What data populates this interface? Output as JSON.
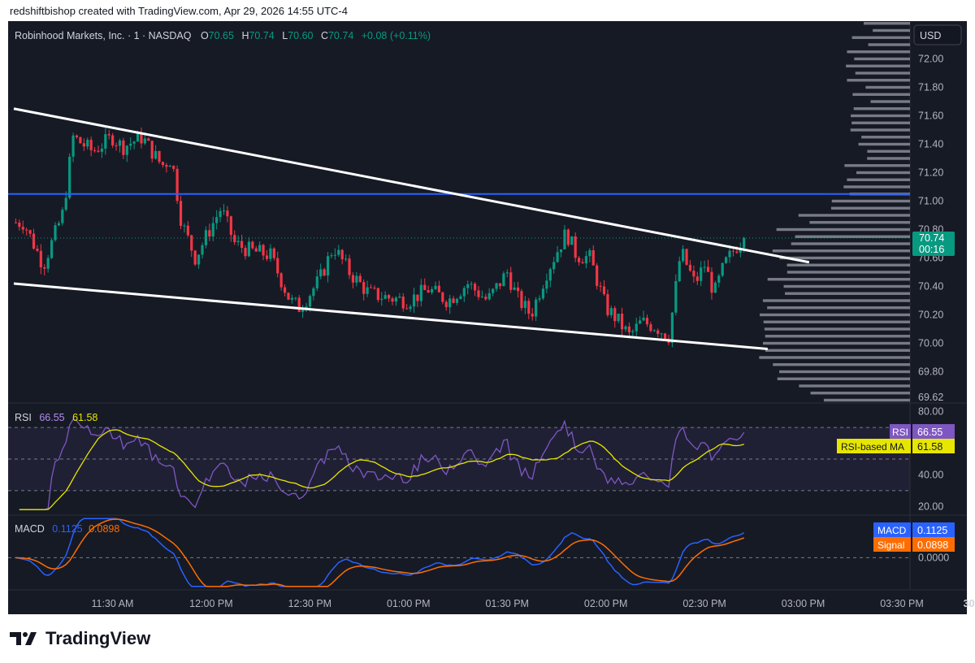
{
  "header": {
    "text": "redshiftbishop created with TradingView.com, Apr 29, 2026 14:55 UTC-4"
  },
  "brand": {
    "name": "TradingView"
  },
  "legend": {
    "symbol": "Robinhood Markets, Inc. · 1 · NASDAQ",
    "o_label": "O",
    "o_value": "70.65",
    "h_label": "H",
    "h_value": "70.74",
    "l_label": "L",
    "l_value": "70.60",
    "c_label": "C",
    "c_value": "70.74",
    "change": "+0.08 (+0.11%)"
  },
  "currency": "USD",
  "price_tag": {
    "price": "70.74",
    "countdown": "00:16"
  },
  "rsi": {
    "title": "RSI",
    "value": "66.55",
    "ma_value": "61.58",
    "tag_rsi": "RSI",
    "tag_ma": "RSI-based MA"
  },
  "macd": {
    "title": "MACD",
    "value": "0.1125",
    "signal_value": "0.0898",
    "tag_macd": "MACD",
    "tag_signal": "Signal"
  },
  "colors": {
    "background": "#161a25",
    "up": "#089981",
    "down": "#f23645",
    "resistance_line": "#2962ff",
    "rsi": "#7e57c2",
    "rsi_ma": "#e6e600",
    "macd": "#2962ff",
    "signal": "#ff6d00",
    "volume_profile": "#787b86"
  },
  "chart_data": [
    {
      "type": "candlestick",
      "title": "Robinhood Markets, Inc. · 1 · NASDAQ",
      "x_axis": {
        "type": "time",
        "tick_labels": [
          "11:30 AM",
          "12:00 PM",
          "12:30 PM",
          "01:00 PM",
          "01:30 PM",
          "02:00 PM",
          "02:30 PM",
          "03:00 PM",
          "03:30 PM",
          "30"
        ]
      },
      "y_axis": {
        "ticks": [
          "72.00",
          "71.80",
          "71.60",
          "71.40",
          "71.20",
          "71.00",
          "70.80",
          "70.60",
          "70.40",
          "70.20",
          "70.00",
          "69.80",
          "69.62"
        ],
        "range": [
          69.58,
          72.26
        ]
      },
      "last_price": 70.74,
      "anchors": [
        [
          11.05,
          70.85
        ],
        [
          11.15,
          70.55
        ],
        [
          11.25,
          70.92
        ],
        [
          11.3,
          71.45
        ],
        [
          11.4,
          71.35
        ],
        [
          11.5,
          71.45
        ],
        [
          11.55,
          71.38
        ],
        [
          11.65,
          71.45
        ],
        [
          11.75,
          71.25
        ],
        [
          11.8,
          71.3
        ],
        [
          11.85,
          70.85
        ],
        [
          11.92,
          70.6
        ],
        [
          12.0,
          70.82
        ],
        [
          12.05,
          70.95
        ],
        [
          12.12,
          70.7
        ],
        [
          12.2,
          70.65
        ],
        [
          12.3,
          70.62
        ],
        [
          12.4,
          70.3
        ],
        [
          12.45,
          70.25
        ],
        [
          12.55,
          70.45
        ],
        [
          12.62,
          70.68
        ],
        [
          12.7,
          70.5
        ],
        [
          12.8,
          70.35
        ],
        [
          12.9,
          70.32
        ],
        [
          13.0,
          70.3
        ],
        [
          13.1,
          70.38
        ],
        [
          13.2,
          70.3
        ],
        [
          13.3,
          70.42
        ],
        [
          13.4,
          70.3
        ],
        [
          13.5,
          70.5
        ],
        [
          13.55,
          70.32
        ],
        [
          13.62,
          70.2
        ],
        [
          13.7,
          70.5
        ],
        [
          13.8,
          70.78
        ],
        [
          13.85,
          70.62
        ],
        [
          13.92,
          70.6
        ],
        [
          14.0,
          70.25
        ],
        [
          14.05,
          70.18
        ],
        [
          14.12,
          70.05
        ],
        [
          14.18,
          70.15
        ],
        [
          14.25,
          70.12
        ],
        [
          14.32,
          70.05
        ],
        [
          14.38,
          70.65
        ],
        [
          14.45,
          70.42
        ],
        [
          14.5,
          70.55
        ],
        [
          14.55,
          70.35
        ],
        [
          14.6,
          70.55
        ],
        [
          14.66,
          70.68
        ],
        [
          14.7,
          70.74
        ]
      ],
      "volume_profile": {
        "point_of_control": 70.1
      }
    },
    {
      "type": "line",
      "title": "RSI",
      "x_axis": {
        "type": "time"
      },
      "y_axis": {
        "ticks": [
          "80.00",
          "40.00",
          "20.00"
        ],
        "range": [
          15,
          85
        ]
      },
      "levels": [
        70,
        50,
        30
      ],
      "series": [
        {
          "name": "RSI",
          "last": 66.55
        },
        {
          "name": "RSI-based MA",
          "last": 61.58
        }
      ]
    },
    {
      "type": "line",
      "title": "MACD",
      "x_axis": {
        "type": "time"
      },
      "y_axis": {
        "ticks": [
          "0.0000"
        ],
        "range": [
          -0.12,
          0.16
        ]
      },
      "series": [
        {
          "name": "MACD",
          "last": 0.1125
        },
        {
          "name": "Signal",
          "last": 0.0898
        }
      ]
    }
  ]
}
